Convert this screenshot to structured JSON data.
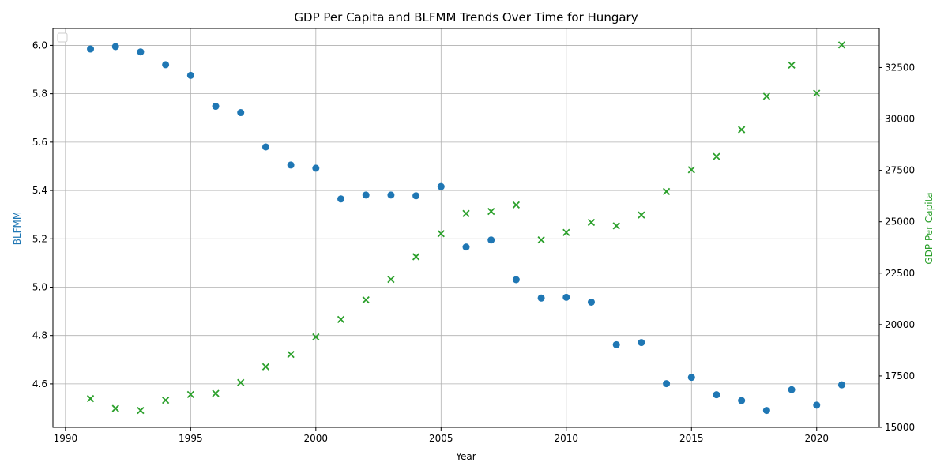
{
  "colors": {
    "blfmm": "#1f77b4",
    "gdp": "#2ca02c",
    "grid": "#b0b0b0",
    "axis": "#000000"
  },
  "chart_data": {
    "type": "scatter",
    "title": "GDP Per Capita and BLFMM Trends Over Time for Hungary",
    "xlabel": "Year",
    "ylabel_left": "BLFMM",
    "ylabel_right": "GDP Per Capita",
    "xlim": [
      1989.5,
      2022.5
    ],
    "ylim_left": [
      4.42,
      6.07
    ],
    "ylim_right": [
      15000,
      34400
    ],
    "x_ticks": [
      1990,
      1995,
      2000,
      2005,
      2010,
      2015,
      2020
    ],
    "y_left_ticks": [
      4.6,
      4.8,
      5.0,
      5.2,
      5.4,
      5.6,
      5.8,
      6.0
    ],
    "y_right_ticks": [
      15000,
      17500,
      20000,
      22500,
      25000,
      27500,
      30000,
      32500
    ],
    "x_tick_labels": [
      "1990",
      "1995",
      "2000",
      "2005",
      "2010",
      "2015",
      "2020"
    ],
    "y_left_tick_labels": [
      "4.6",
      "4.8",
      "5.0",
      "5.2",
      "5.4",
      "5.6",
      "5.8",
      "6.0"
    ],
    "y_right_tick_labels": [
      "15000",
      "17500",
      "20000",
      "22500",
      "25000",
      "27500",
      "30000",
      "32500"
    ],
    "grid": true,
    "legend": "top-left",
    "series": [
      {
        "axis": "left",
        "marker": "circle",
        "color": "#1f77b4",
        "points": [
          [
            1991,
            5.985
          ],
          [
            1992,
            5.995
          ],
          [
            1993,
            5.973
          ],
          [
            1994,
            5.92
          ],
          [
            1995,
            5.876
          ],
          [
            1996,
            5.748
          ],
          [
            1997,
            5.722
          ],
          [
            1998,
            5.58
          ],
          [
            1999,
            5.505
          ],
          [
            2000,
            5.492
          ],
          [
            2001,
            5.365
          ],
          [
            2002,
            5.381
          ],
          [
            2003,
            5.381
          ],
          [
            2004,
            5.378
          ],
          [
            2005,
            5.416
          ],
          [
            2006,
            5.166
          ],
          [
            2007,
            5.195
          ],
          [
            2008,
            5.031
          ],
          [
            2009,
            4.955
          ],
          [
            2010,
            4.958
          ],
          [
            2011,
            4.938
          ],
          [
            2012,
            4.762
          ],
          [
            2013,
            4.771
          ],
          [
            2014,
            4.601
          ],
          [
            2015,
            4.627
          ],
          [
            2016,
            4.555
          ],
          [
            2017,
            4.531
          ],
          [
            2018,
            4.49
          ],
          [
            2019,
            4.576
          ],
          [
            2020,
            4.512
          ],
          [
            2021,
            4.596
          ]
        ]
      },
      {
        "axis": "right",
        "marker": "x",
        "color": "#2ca02c",
        "points": [
          [
            1991,
            16400
          ],
          [
            1992,
            15920
          ],
          [
            1993,
            15820
          ],
          [
            1994,
            16320
          ],
          [
            1995,
            16600
          ],
          [
            1996,
            16650
          ],
          [
            1997,
            17180
          ],
          [
            1998,
            17950
          ],
          [
            1999,
            18550
          ],
          [
            2000,
            19400
          ],
          [
            2001,
            20250
          ],
          [
            2002,
            21200
          ],
          [
            2003,
            22200
          ],
          [
            2004,
            23300
          ],
          [
            2005,
            24420
          ],
          [
            2006,
            25400
          ],
          [
            2007,
            25500
          ],
          [
            2008,
            25820
          ],
          [
            2009,
            24120
          ],
          [
            2010,
            24480
          ],
          [
            2011,
            24970
          ],
          [
            2012,
            24800
          ],
          [
            2013,
            25330
          ],
          [
            2014,
            26470
          ],
          [
            2015,
            27530
          ],
          [
            2016,
            28170
          ],
          [
            2017,
            29480
          ],
          [
            2018,
            31100
          ],
          [
            2019,
            32620
          ],
          [
            2020,
            31250
          ],
          [
            2021,
            33600
          ]
        ]
      }
    ]
  }
}
